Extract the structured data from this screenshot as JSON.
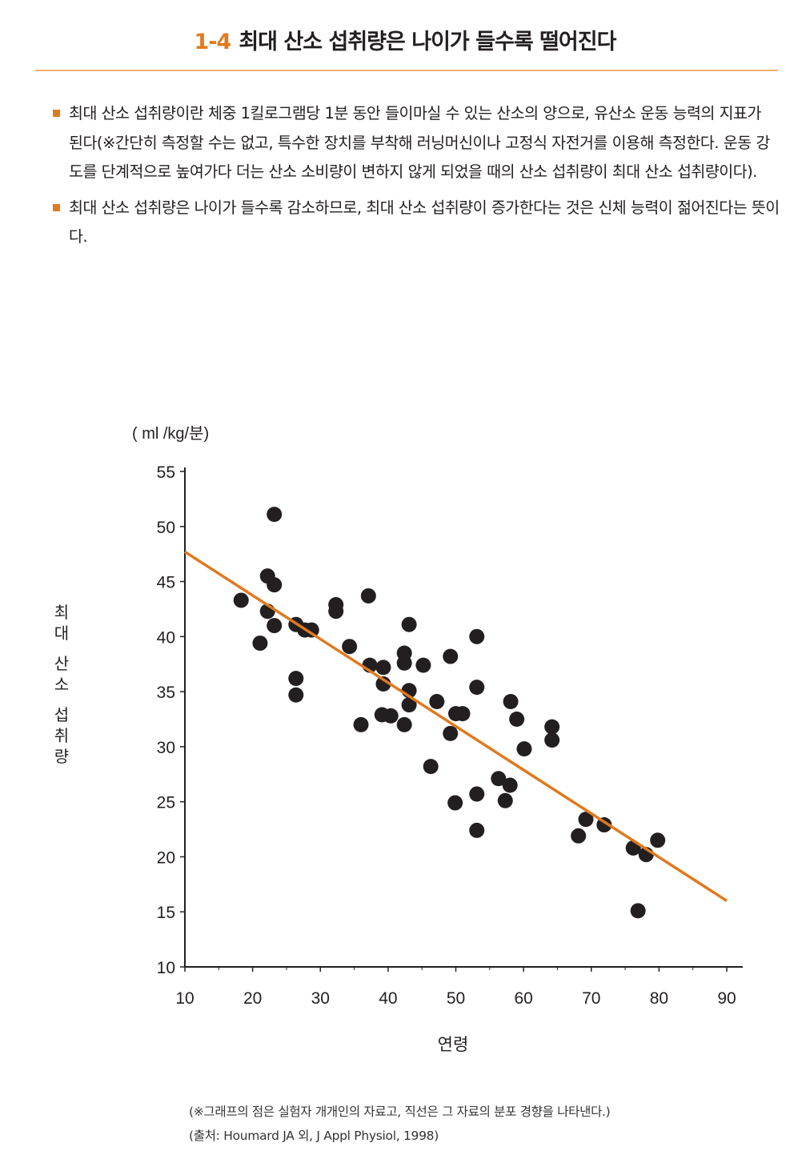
{
  "header": {
    "number": "1-4",
    "title": "최대 산소 섭취량은 나이가 들수록 떨어진다"
  },
  "bullets": [
    "최대 산소 섭취량이란 체중 1킬로그램당 1분 동안 들이마실 수 있는 산소의 양으로, 유산소 운동 능력의 지표가 된다(※간단히 측정할 수는 없고, 특수한 장치를 부착해 러닝머신이나 고정식 자전거를 이용해 측정한다. 운동 강도를 단계적으로 높여가다 더는 산소 소비량이 변하지 않게 되었을 때의 산소 섭취량이 최대 산소 섭취량이다).",
    "최대 산소 섭취량은 나이가 들수록 감소하므로, 최대 산소 섭취량이 증가한다는 것은 신체 능력이 젊어진다는 뜻이다."
  ],
  "footnotes": {
    "note": "(※그래프의 점은 실험자 개개인의 자료고, 직선은 그 자료의 분포 경향을 나타낸다.)",
    "source": "(출처: Houmard JA 외, J Appl Physiol, 1998)"
  },
  "chart_data": {
    "type": "scatter",
    "title": "",
    "xlabel": "연령",
    "ylabel": "최대 산소 섭취량",
    "yunit": "( ml /kg/분)",
    "xlim": [
      10,
      90
    ],
    "ylim": [
      10,
      55
    ],
    "xticks": [
      10,
      20,
      30,
      40,
      50,
      60,
      70,
      80,
      90
    ],
    "yticks": [
      10,
      15,
      20,
      25,
      30,
      35,
      40,
      45,
      50,
      55
    ],
    "grid": false,
    "colors": {
      "points": "#231f20",
      "trend": "#e07a1f"
    },
    "points": [
      [
        18.3,
        43.3
      ],
      [
        23.2,
        51.1
      ],
      [
        22.2,
        45.5
      ],
      [
        23.2,
        44.7
      ],
      [
        22.2,
        42.3
      ],
      [
        23.2,
        41.0
      ],
      [
        21.1,
        39.4
      ],
      [
        26.4,
        36.2
      ],
      [
        26.4,
        34.7
      ],
      [
        26.4,
        41.1
      ],
      [
        27.7,
        40.6
      ],
      [
        28.7,
        40.6
      ],
      [
        32.3,
        42.9
      ],
      [
        32.3,
        42.3
      ],
      [
        37.1,
        43.7
      ],
      [
        34.3,
        39.1
      ],
      [
        37.3,
        37.4
      ],
      [
        39.3,
        37.2
      ],
      [
        39.3,
        35.7
      ],
      [
        36.0,
        32.0
      ],
      [
        39.1,
        32.9
      ],
      [
        40.4,
        32.8
      ],
      [
        43.1,
        41.1
      ],
      [
        42.4,
        38.5
      ],
      [
        42.4,
        37.6
      ],
      [
        45.2,
        37.4
      ],
      [
        43.1,
        35.1
      ],
      [
        43.1,
        33.8
      ],
      [
        42.4,
        32.0
      ],
      [
        49.2,
        38.2
      ],
      [
        53.1,
        40.0
      ],
      [
        47.2,
        34.1
      ],
      [
        50.0,
        33.0
      ],
      [
        51.0,
        33.0
      ],
      [
        49.2,
        31.2
      ],
      [
        53.1,
        35.4
      ],
      [
        46.3,
        28.2
      ],
      [
        49.9,
        24.9
      ],
      [
        53.1,
        25.7
      ],
      [
        53.1,
        22.4
      ],
      [
        58.1,
        34.1
      ],
      [
        59.0,
        32.5
      ],
      [
        60.1,
        29.8
      ],
      [
        56.3,
        27.1
      ],
      [
        58.0,
        26.5
      ],
      [
        57.3,
        25.1
      ],
      [
        64.2,
        31.8
      ],
      [
        64.2,
        30.6
      ],
      [
        69.2,
        23.4
      ],
      [
        71.9,
        22.9
      ],
      [
        68.1,
        21.9
      ],
      [
        76.2,
        20.8
      ],
      [
        78.1,
        20.2
      ],
      [
        79.8,
        21.5
      ],
      [
        76.9,
        15.1
      ]
    ],
    "trendline": {
      "x": [
        10,
        90
      ],
      "y": [
        47.7,
        16.0
      ]
    }
  }
}
